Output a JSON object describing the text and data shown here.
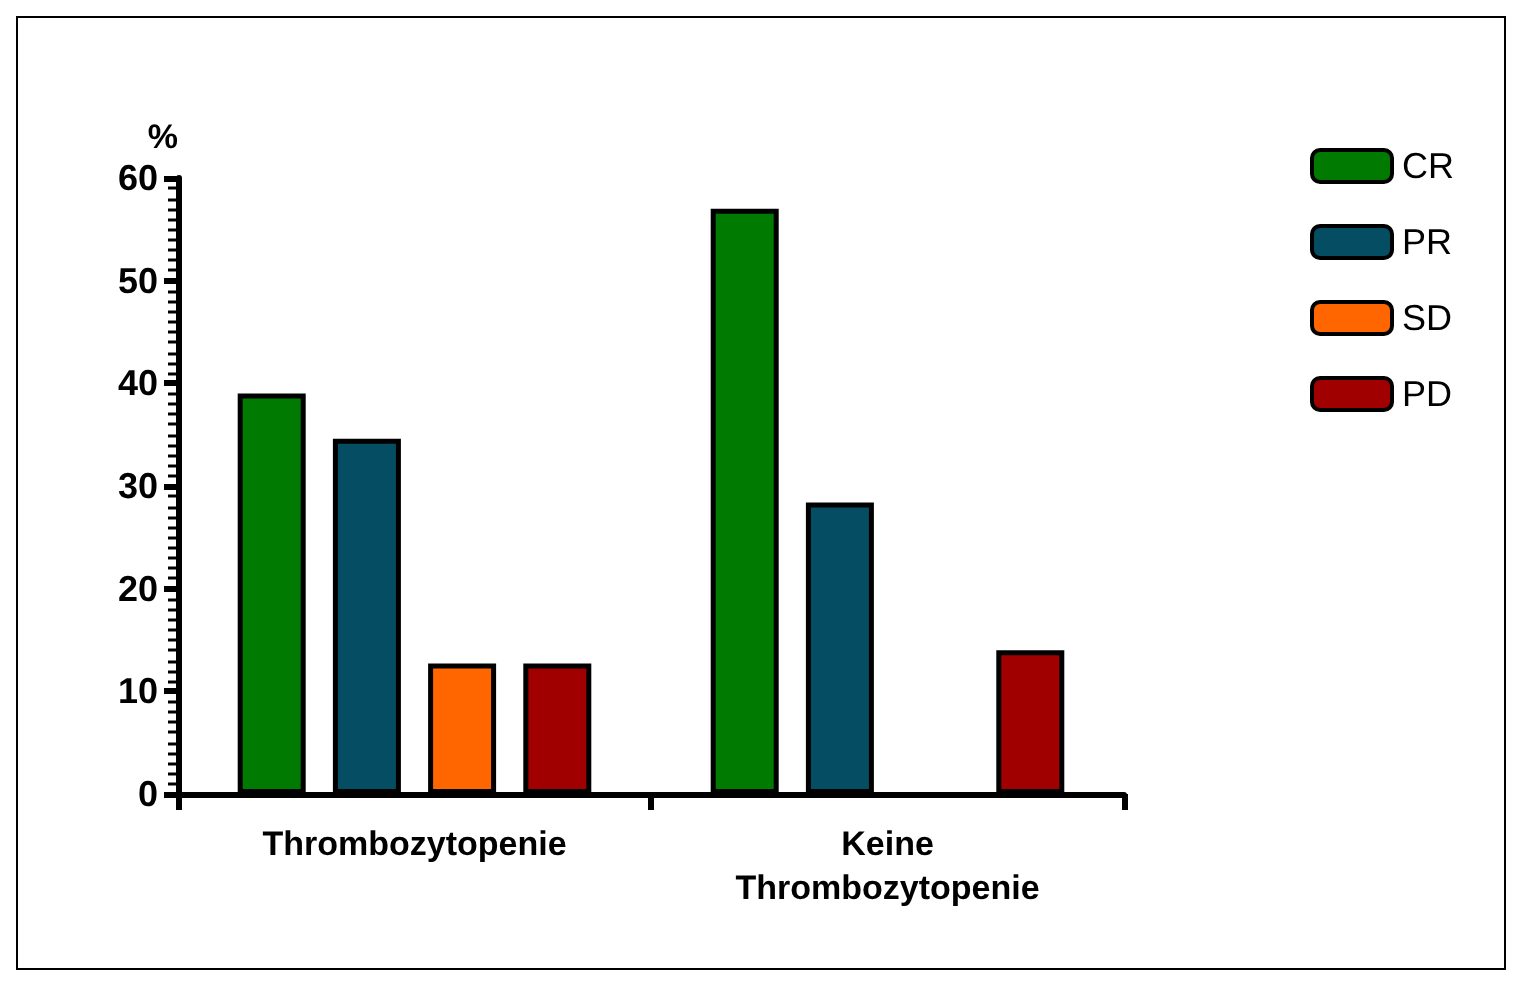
{
  "chart_data": {
    "type": "bar",
    "ylabel": "%",
    "categories": [
      "Thrombozytopenie",
      "Keine\nThrombozytopenie"
    ],
    "series": [
      {
        "name": "CR",
        "color": "#007a00",
        "values": [
          39,
          57
        ]
      },
      {
        "name": "PR",
        "color": "#054d63",
        "values": [
          34.6,
          28.4
        ]
      },
      {
        "name": "SD",
        "color": "#ff6600",
        "values": [
          12.7,
          null
        ]
      },
      {
        "name": "PD",
        "color": "#a00000",
        "values": [
          12.7,
          14
        ]
      }
    ],
    "ylim": [
      0,
      60
    ],
    "yticks": [
      0,
      10,
      20,
      30,
      40,
      50,
      60
    ],
    "grid": false,
    "legend": "right"
  }
}
